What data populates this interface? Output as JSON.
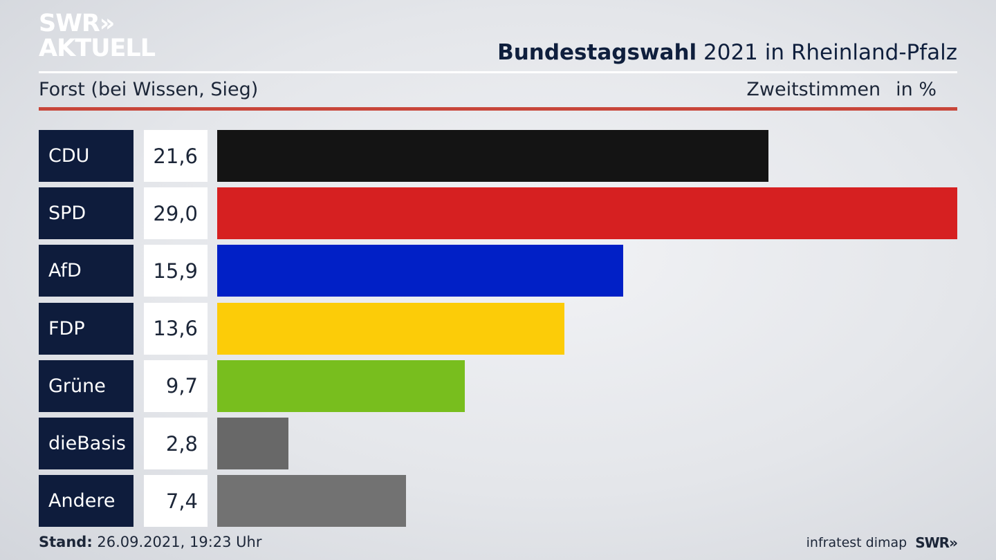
{
  "logo": {
    "line1": "SWR",
    "chevrons": "»",
    "line2": "AKTUELL"
  },
  "header": {
    "title_bold": "Bundestagswahl",
    "title_rest": " 2021 in Rheinland-Pfalz",
    "subtitle": "Forst (bei Wissen, Sieg)",
    "measure": "Zweitstimmen",
    "unit": "in %"
  },
  "chart_data": {
    "type": "bar",
    "orientation": "horizontal",
    "categories": [
      "CDU",
      "SPD",
      "AfD",
      "FDP",
      "Grüne",
      "dieBasis",
      "Andere"
    ],
    "values": [
      21.6,
      29.0,
      15.9,
      13.6,
      9.7,
      2.8,
      7.4
    ],
    "value_labels": [
      "21,6",
      "29,0",
      "15,9",
      "13,6",
      "9,7",
      "2,8",
      "7,4"
    ],
    "colors": [
      "#141414",
      "#d62021",
      "#0120c6",
      "#fccc08",
      "#78be1e",
      "#686868",
      "#727272"
    ],
    "title": "Bundestagswahl 2021 in Rheinland-Pfalz",
    "subtitle": "Forst (bei Wissen, Sieg)",
    "xlim": [
      0,
      29.0
    ]
  },
  "footer": {
    "stand_label": "Stand:",
    "stand_value": " 26.09.2021, 19:23 Uhr",
    "source": "infratest dimap",
    "brand": "SWR",
    "brand_chevrons": "»"
  }
}
